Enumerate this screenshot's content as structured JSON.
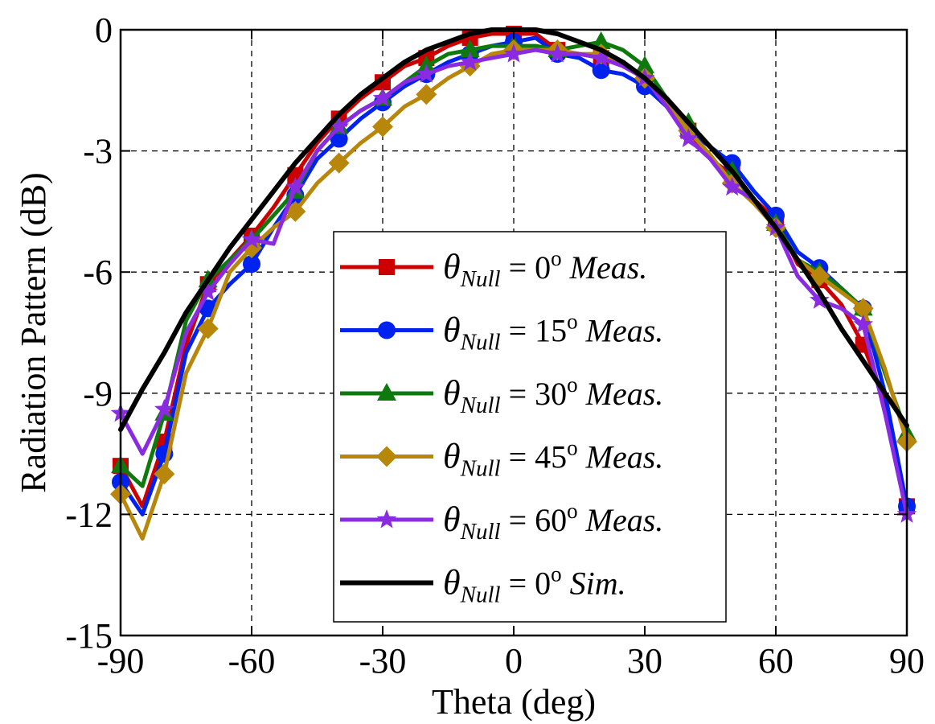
{
  "chart_data": {
    "type": "line",
    "xlabel": "Theta (deg)",
    "ylabel": "Radiation Pattern (dB)",
    "xlim": [
      -90,
      90
    ],
    "ylim": [
      -15,
      0
    ],
    "xticks": [
      -90,
      -60,
      -30,
      0,
      30,
      60,
      90
    ],
    "yticks": [
      0,
      -3,
      -6,
      -9,
      -12,
      -15
    ],
    "xtick_labels": [
      "-90",
      "-60",
      "-30",
      "0",
      "30",
      "60",
      "90"
    ],
    "ytick_labels": [
      "0",
      "-3",
      "-6",
      "-9",
      "-12",
      "-15"
    ],
    "grid": true,
    "legend_position": "center-right",
    "series": [
      {
        "name_symbol": "θ",
        "name_sub": "Null",
        "name_value": " = 0",
        "name_sup": "o",
        "name_tail": " Meas.",
        "color": "#cc0000",
        "marker": "square",
        "x": [
          -90,
          -85,
          -80,
          -75,
          -70,
          -65,
          -60,
          -55,
          -50,
          -45,
          -40,
          -35,
          -30,
          -25,
          -20,
          -15,
          -10,
          -5,
          0,
          5,
          10,
          15,
          20,
          25,
          30,
          35,
          40,
          45,
          50,
          55,
          60,
          65,
          70,
          75,
          80,
          85,
          90
        ],
        "y": [
          -10.8,
          -11.8,
          -10.2,
          -7.8,
          -6.3,
          -5.7,
          -5.1,
          -4.4,
          -3.6,
          -2.8,
          -2.2,
          -1.7,
          -1.3,
          -0.9,
          -0.7,
          -0.4,
          -0.2,
          -0.1,
          -0.1,
          -0.1,
          -0.5,
          -0.6,
          -0.7,
          -0.9,
          -1.2,
          -1.8,
          -2.5,
          -3.2,
          -3.6,
          -4.2,
          -4.7,
          -5.8,
          -6.2,
          -6.8,
          -7.8,
          -9.2,
          -11.8
        ]
      },
      {
        "name_symbol": "θ",
        "name_sub": "Null",
        "name_value": " = 15",
        "name_sup": "o",
        "name_tail": " Meas.",
        "color": "#0022ee",
        "marker": "circle",
        "x": [
          -90,
          -85,
          -80,
          -75,
          -70,
          -65,
          -60,
          -55,
          -50,
          -45,
          -40,
          -35,
          -30,
          -25,
          -20,
          -15,
          -10,
          -5,
          0,
          5,
          10,
          15,
          20,
          25,
          30,
          35,
          40,
          45,
          50,
          55,
          60,
          65,
          70,
          75,
          80,
          85,
          90
        ],
        "y": [
          -11.2,
          -12.0,
          -10.5,
          -8.0,
          -6.9,
          -6.3,
          -5.8,
          -4.9,
          -4.1,
          -3.2,
          -2.7,
          -2.2,
          -1.8,
          -1.4,
          -1.1,
          -0.8,
          -0.6,
          -0.4,
          -0.3,
          -0.2,
          -0.6,
          -0.7,
          -1.0,
          -1.1,
          -1.4,
          -1.9,
          -2.5,
          -2.9,
          -3.3,
          -4.0,
          -4.6,
          -5.5,
          -5.9,
          -6.4,
          -6.9,
          -9.0,
          -11.8
        ]
      },
      {
        "name_symbol": "θ",
        "name_sub": "Null",
        "name_value": " = 30",
        "name_sup": "o",
        "name_tail": " Meas.",
        "color": "#0e7a0e",
        "marker": "triangle",
        "x": [
          -90,
          -85,
          -80,
          -75,
          -70,
          -65,
          -60,
          -55,
          -50,
          -45,
          -40,
          -35,
          -30,
          -25,
          -20,
          -15,
          -10,
          -5,
          0,
          5,
          10,
          15,
          20,
          25,
          30,
          35,
          40,
          45,
          50,
          55,
          60,
          65,
          70,
          75,
          80,
          85,
          90
        ],
        "y": [
          -10.8,
          -11.3,
          -9.5,
          -7.2,
          -6.2,
          -5.7,
          -5.2,
          -4.6,
          -4.0,
          -3.0,
          -2.4,
          -2.0,
          -1.7,
          -1.3,
          -0.9,
          -0.6,
          -0.5,
          -0.4,
          -0.4,
          -0.4,
          -0.5,
          -0.4,
          -0.3,
          -0.5,
          -0.9,
          -1.7,
          -2.3,
          -2.9,
          -3.5,
          -4.3,
          -4.8,
          -5.7,
          -6.0,
          -6.4,
          -6.9,
          -8.5,
          -10.0
        ]
      },
      {
        "name_symbol": "θ",
        "name_sub": "Null",
        "name_value": " = 45",
        "name_sup": "o",
        "name_tail": " Meas.",
        "color": "#b8860b",
        "marker": "diamond",
        "x": [
          -90,
          -85,
          -80,
          -75,
          -70,
          -65,
          -60,
          -55,
          -50,
          -45,
          -40,
          -35,
          -30,
          -25,
          -20,
          -15,
          -10,
          -5,
          0,
          5,
          10,
          15,
          20,
          25,
          30,
          35,
          40,
          45,
          50,
          55,
          60,
          65,
          70,
          75,
          80,
          85,
          90
        ],
        "y": [
          -11.5,
          -12.6,
          -11.0,
          -8.5,
          -7.4,
          -6.0,
          -5.4,
          -4.9,
          -4.5,
          -3.8,
          -3.3,
          -2.8,
          -2.4,
          -1.9,
          -1.6,
          -1.2,
          -0.9,
          -0.6,
          -0.5,
          -0.5,
          -0.5,
          -0.6,
          -0.6,
          -0.8,
          -1.2,
          -1.8,
          -2.5,
          -3.1,
          -3.8,
          -4.3,
          -4.9,
          -5.7,
          -6.1,
          -6.5,
          -6.9,
          -8.4,
          -10.2
        ]
      },
      {
        "name_symbol": "θ",
        "name_sub": "Null",
        "name_value": " = 60",
        "name_sup": "o",
        "name_tail": " Meas.",
        "color": "#8a2be2",
        "marker": "star",
        "x": [
          -90,
          -85,
          -80,
          -75,
          -70,
          -65,
          -60,
          -55,
          -50,
          -45,
          -40,
          -35,
          -30,
          -25,
          -20,
          -15,
          -10,
          -5,
          0,
          5,
          10,
          15,
          20,
          25,
          30,
          35,
          40,
          45,
          50,
          55,
          60,
          65,
          70,
          75,
          80,
          85,
          90
        ],
        "y": [
          -9.5,
          -10.5,
          -9.4,
          -7.5,
          -6.5,
          -5.8,
          -5.2,
          -5.3,
          -3.9,
          -3.0,
          -2.4,
          -2.0,
          -1.7,
          -1.3,
          -1.1,
          -0.9,
          -0.8,
          -0.7,
          -0.6,
          -0.5,
          -0.6,
          -0.6,
          -0.7,
          -0.9,
          -1.2,
          -1.9,
          -2.7,
          -3.2,
          -3.9,
          -4.2,
          -4.9,
          -6.1,
          -6.7,
          -6.9,
          -7.3,
          -9.5,
          -12.0
        ]
      },
      {
        "name_symbol": "θ",
        "name_sub": "Null",
        "name_value": " = 0",
        "name_sup": "o",
        "name_tail": " Sim.",
        "color": "#000000",
        "marker": "none",
        "x": [
          -90,
          -85,
          -80,
          -75,
          -70,
          -65,
          -60,
          -55,
          -50,
          -45,
          -40,
          -35,
          -30,
          -25,
          -20,
          -15,
          -10,
          -5,
          0,
          5,
          10,
          15,
          20,
          25,
          30,
          35,
          40,
          45,
          50,
          55,
          60,
          65,
          70,
          75,
          80,
          85,
          90
        ],
        "y": [
          -9.9,
          -8.9,
          -8.0,
          -7.0,
          -6.2,
          -5.4,
          -4.7,
          -4.0,
          -3.3,
          -2.7,
          -2.1,
          -1.6,
          -1.2,
          -0.8,
          -0.5,
          -0.3,
          -0.1,
          0.0,
          0.0,
          0.0,
          -0.1,
          -0.3,
          -0.5,
          -0.8,
          -1.2,
          -1.7,
          -2.3,
          -2.9,
          -3.5,
          -4.2,
          -4.9,
          -5.7,
          -6.5,
          -7.4,
          -8.2,
          -9.0,
          -9.8
        ]
      }
    ]
  }
}
